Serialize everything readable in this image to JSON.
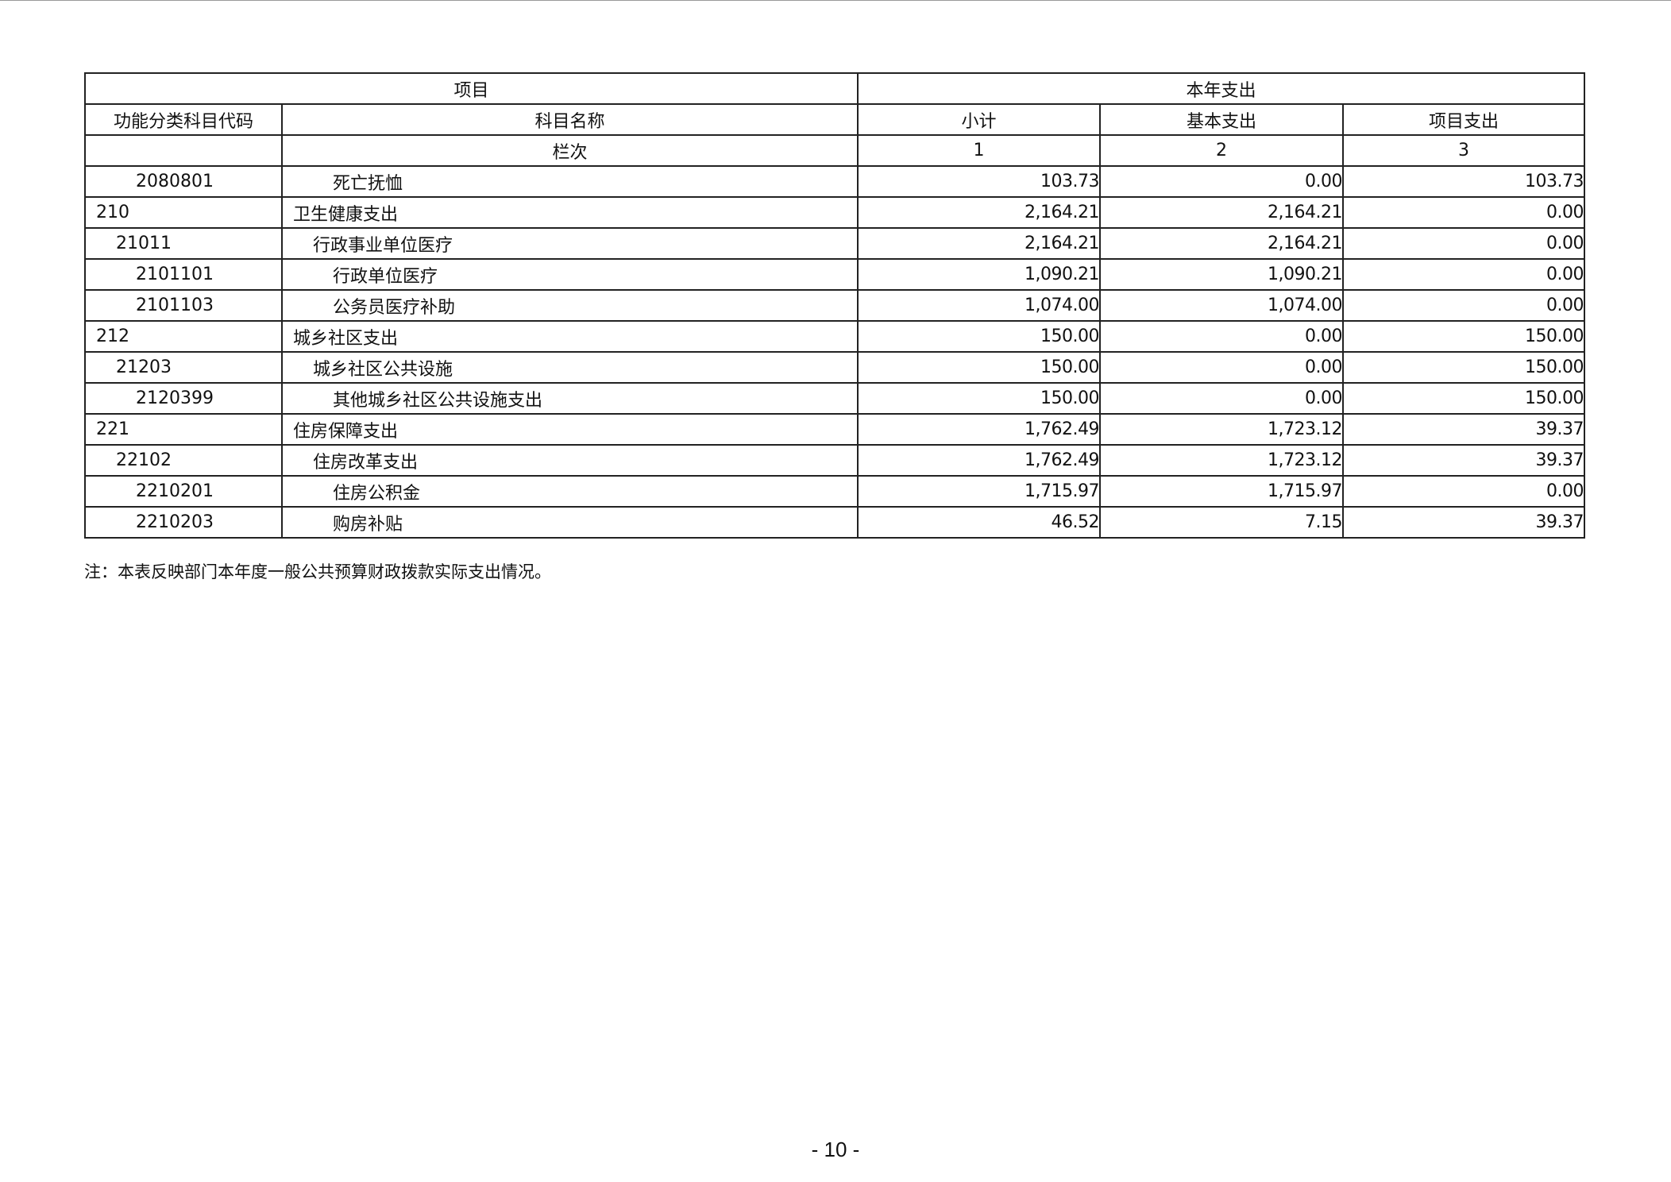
{
  "header": {
    "group_item": "项目",
    "group_expense": "本年支出",
    "col_code": "功能分类科目代码",
    "col_name": "科目名称",
    "col_subtotal": "小计",
    "col_basic": "基本支出",
    "col_project": "项目支出",
    "row_index_label": "栏次",
    "idx1": "1",
    "idx2": "2",
    "idx3": "3"
  },
  "rows": [
    {
      "level": 3,
      "code": "2080801",
      "name": "死亡抚恤",
      "subtotal": "103.73",
      "basic": "0.00",
      "project": "103.73"
    },
    {
      "level": 1,
      "code": "210",
      "name": "卫生健康支出",
      "subtotal": "2,164.21",
      "basic": "2,164.21",
      "project": "0.00"
    },
    {
      "level": 2,
      "code": "21011",
      "name": "行政事业单位医疗",
      "subtotal": "2,164.21",
      "basic": "2,164.21",
      "project": "0.00"
    },
    {
      "level": 3,
      "code": "2101101",
      "name": "行政单位医疗",
      "subtotal": "1,090.21",
      "basic": "1,090.21",
      "project": "0.00"
    },
    {
      "level": 3,
      "code": "2101103",
      "name": "公务员医疗补助",
      "subtotal": "1,074.00",
      "basic": "1,074.00",
      "project": "0.00"
    },
    {
      "level": 1,
      "code": "212",
      "name": "城乡社区支出",
      "subtotal": "150.00",
      "basic": "0.00",
      "project": "150.00"
    },
    {
      "level": 2,
      "code": "21203",
      "name": "城乡社区公共设施",
      "subtotal": "150.00",
      "basic": "0.00",
      "project": "150.00"
    },
    {
      "level": 3,
      "code": "2120399",
      "name": "其他城乡社区公共设施支出",
      "subtotal": "150.00",
      "basic": "0.00",
      "project": "150.00"
    },
    {
      "level": 1,
      "code": "221",
      "name": "住房保障支出",
      "subtotal": "1,762.49",
      "basic": "1,723.12",
      "project": "39.37"
    },
    {
      "level": 2,
      "code": "22102",
      "name": "住房改革支出",
      "subtotal": "1,762.49",
      "basic": "1,723.12",
      "project": "39.37"
    },
    {
      "level": 3,
      "code": "2210201",
      "name": "住房公积金",
      "subtotal": "1,715.97",
      "basic": "1,715.97",
      "project": "0.00"
    },
    {
      "level": 3,
      "code": "2210203",
      "name": "购房补贴",
      "subtotal": "46.52",
      "basic": "7.15",
      "project": "39.37"
    }
  ],
  "note": "注：本表反映部门本年度一般公共预算财政拨款实际支出情况。",
  "page_number": "- 10 -"
}
